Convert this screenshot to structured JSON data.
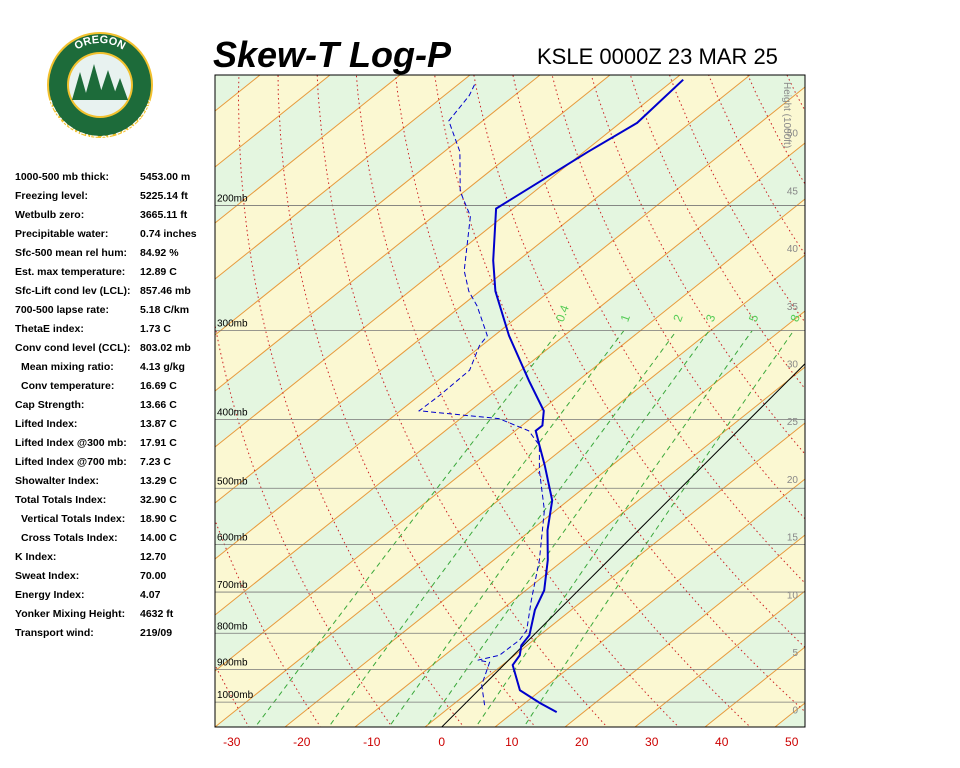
{
  "logo": {
    "top": "OREGON",
    "bottom": "DEPARTMENT OF FORESTRY"
  },
  "table": {
    "rows": [
      {
        "label": "1000-500 mb thick:",
        "value": "5453.00 m"
      },
      {
        "label": "Freezing level:",
        "value": "5225.14 ft"
      },
      {
        "label": "Wetbulb zero:",
        "value": "3665.11 ft"
      },
      {
        "label": "Precipitable water:",
        "value": "0.74 inches"
      },
      {
        "label": "Sfc-500 mean rel hum:",
        "value": "84.92 %"
      },
      {
        "label": "Est. max temperature:",
        "value": "12.89 C"
      },
      {
        "label": "Sfc-Lift cond lev (LCL):",
        "value": "857.46 mb"
      },
      {
        "label": "700-500 lapse rate:",
        "value": "5.18 C/km"
      },
      {
        "label": "ThetaE index:",
        "value": "1.73 C"
      },
      {
        "label": "Conv cond level (CCL):",
        "value": "803.02 mb"
      },
      {
        "label": "Mean mixing ratio:",
        "value": "4.13 g/kg",
        "indent": true
      },
      {
        "label": "Conv temperature:",
        "value": "16.69 C",
        "indent": true
      },
      {
        "label": "Cap Strength:",
        "value": "13.66 C"
      },
      {
        "label": "Lifted Index:",
        "value": "13.87 C"
      },
      {
        "label": "Lifted Index @300 mb:",
        "value": "17.91 C"
      },
      {
        "label": "Lifted Index @700 mb:",
        "value": "7.23 C"
      },
      {
        "label": "Showalter Index:",
        "value": "13.29 C"
      },
      {
        "label": "Total Totals Index:",
        "value": "32.90 C"
      },
      {
        "label": "Vertical Totals Index:",
        "value": "18.90 C",
        "indent": true
      },
      {
        "label": "Cross Totals Index:",
        "value": "14.00 C",
        "indent": true
      },
      {
        "label": "K Index:",
        "value": "12.70"
      },
      {
        "label": "Sweat Index:",
        "value": "70.00"
      },
      {
        "label": "Energy Index:",
        "value": "4.07"
      },
      {
        "label": "Yonker Mixing Height:",
        "value": "4632 ft"
      },
      {
        "label": "Transport wind:",
        "value": "219/09"
      }
    ]
  },
  "chart_data": {
    "type": "skewt",
    "title": "Skew-T Log-P",
    "subtitle": "KSLE 0000Z 23 MAR 25",
    "xlim": [
      -32.4,
      51.9
    ],
    "xticks": [
      -30,
      -20,
      -10,
      0,
      10,
      20,
      30,
      40,
      50
    ],
    "ylim": [
      1084,
      131
    ],
    "log_scale": true,
    "yticks": [
      {
        "value": 200,
        "label": "200mb"
      },
      {
        "value": 300,
        "label": "300mb"
      },
      {
        "value": 400,
        "label": "400mb"
      },
      {
        "value": 500,
        "label": "500mb"
      },
      {
        "value": 600,
        "label": "600mb"
      },
      {
        "value": 700,
        "label": "700mb"
      },
      {
        "value": 800,
        "label": "800mb"
      },
      {
        "value": 900,
        "label": "900mb"
      },
      {
        "value": 1000,
        "label": "1000mb"
      }
    ],
    "y2label": "Height (1000ft)",
    "y2lim": [
      -1.5,
      55
    ],
    "y2ticks": [
      0,
      5,
      10,
      15,
      20,
      25,
      30,
      35,
      40,
      45,
      50
    ],
    "mixing_ratio_labels": [
      "0.4",
      "1",
      "2",
      "3",
      "5",
      "8"
    ],
    "series": [
      {
        "color": "#0000cc",
        "dash": false,
        "x": [
          14.3,
          10.6,
          5.9,
          1.3,
          0.9,
          -0.3,
          -0.6,
          -3.4,
          -4.9,
          -8.7,
          -13.0,
          -16.6,
          -22.7,
          -26.3,
          -28.9,
          -28.7,
          -30.6,
          -37.0,
          -46.3,
          -54.6,
          -59.3,
          -66.3,
          -61.3,
          -58.4,
          -58.0
        ],
        "y": [
          1033,
          1003,
          962,
          887,
          859,
          832,
          805,
          742,
          696,
          631,
          573,
          520,
          464,
          435,
          415,
          408,
          389,
          353,
          305,
          264,
          239,
          202,
          168,
          153,
          133
        ]
      },
      {
        "color": "#0000cc",
        "dash": true,
        "x": [
          3.0,
          -0.3,
          -2.4,
          -4.4,
          -2.0,
          -1.3,
          -1.7,
          -5.3,
          -9.9,
          -16.3,
          -22.7,
          -26.3,
          -29.9,
          -35.9,
          -48.4,
          -47.7,
          -47.0,
          -49.1,
          -49.4,
          -55.1,
          -58.4,
          -62.0,
          -68.9,
          -73.9,
          -79.6,
          -85.6,
          -86.3,
          -87.3
        ],
        "y": [
          1010,
          946,
          879,
          873,
          859,
          818,
          792,
          719,
          631,
          537,
          472,
          435,
          415,
          399,
          389,
          370,
          341,
          315,
          305,
          277,
          264,
          247,
          207,
          191,
          168,
          152,
          140,
          134
        ]
      }
    ]
  }
}
